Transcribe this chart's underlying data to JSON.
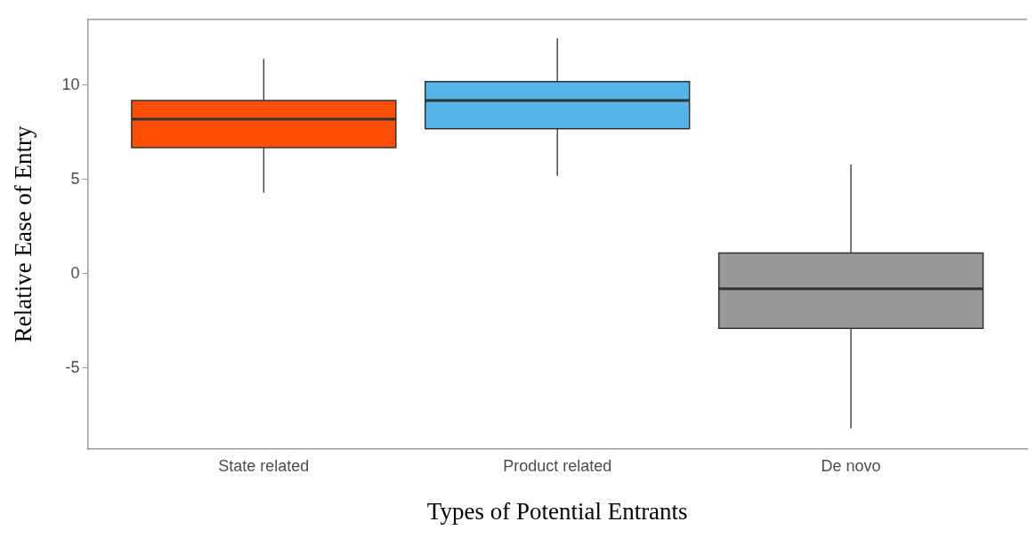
{
  "chart_data": {
    "type": "box",
    "xlabel": "Types of Potential Entrants",
    "ylabel": "Relative Ease of Entry",
    "categories": [
      "State related",
      "Product related",
      "De novo"
    ],
    "boxes": [
      {
        "low": 4.3,
        "q1": 6.7,
        "median": 8.2,
        "q3": 9.2,
        "high": 11.4
      },
      {
        "low": 5.2,
        "q1": 7.7,
        "median": 9.2,
        "q3": 10.2,
        "high": 12.5
      },
      {
        "low": -8.2,
        "q1": -2.9,
        "median": -0.8,
        "q3": 1.1,
        "high": 5.8
      }
    ],
    "colors": [
      "#fc4e07",
      "#56b4e9",
      "#999999"
    ],
    "ylim": [
      -9.3,
      13.5
    ],
    "yticks": [
      -5,
      0,
      5,
      10
    ],
    "grid": false
  }
}
